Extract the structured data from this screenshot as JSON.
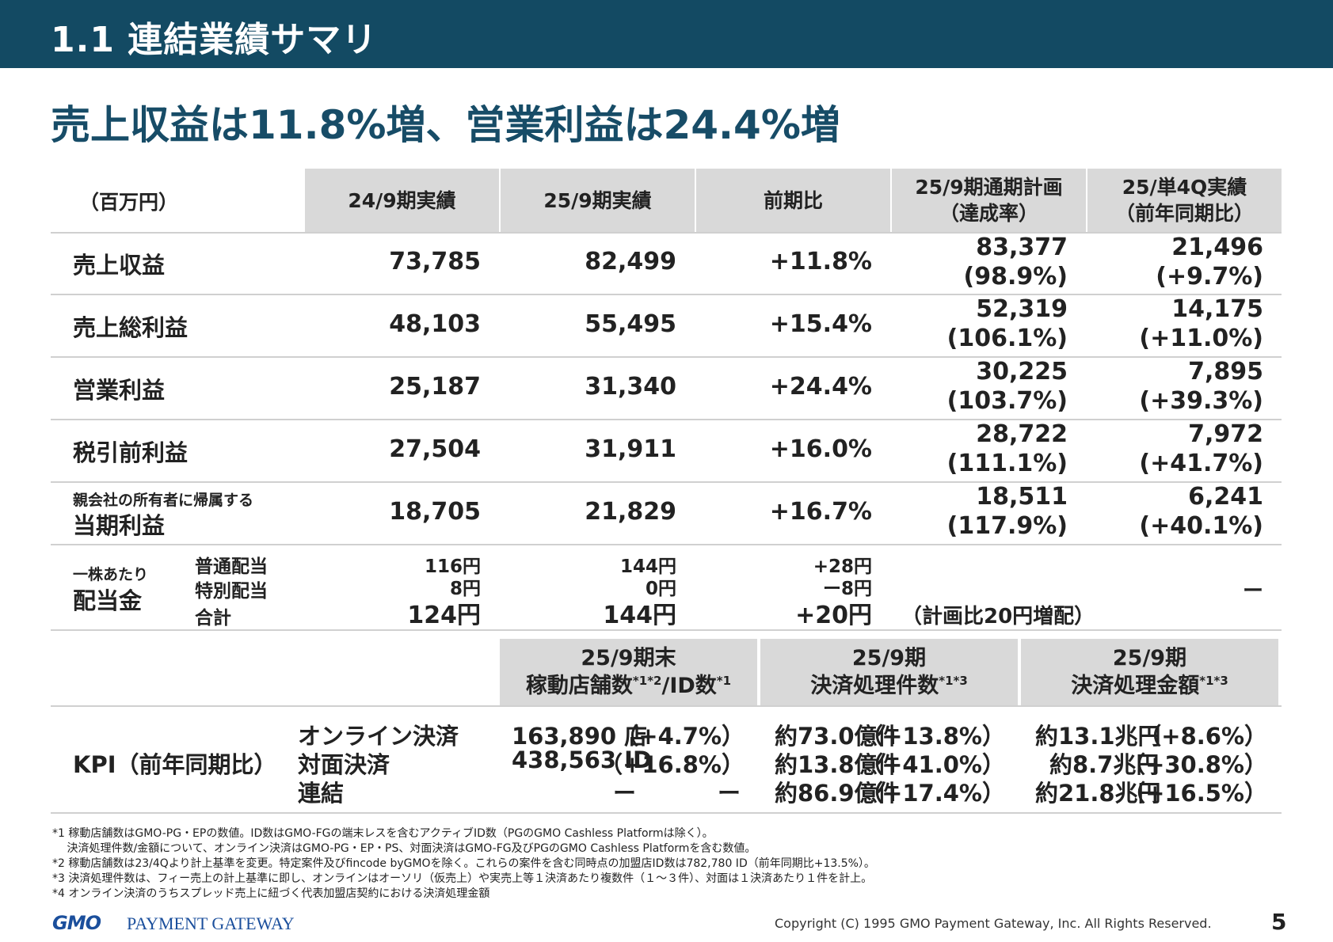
{
  "header": {
    "title": "1.1  連結業績サマリ"
  },
  "headline": "売上収益は11.8%増、営業利益は24.4%増",
  "table": {
    "unit_label": "（百万円）",
    "columns": {
      "fy24": "24/9期実績",
      "fy25": "25/9期実績",
      "yoy": "前期比",
      "plan_l1": "25/9期通期計画",
      "plan_l2": "（達成率）",
      "q4_l1": "25/単4Q実績",
      "q4_l2": "（前年同期比）"
    },
    "rows": [
      {
        "label": "売上収益",
        "fy24": "73,785",
        "fy25": "82,499",
        "yoy": "+11.8%",
        "plan": "83,377",
        "plan_rate": "(98.9%)",
        "q4": "21,496",
        "q4_rate": "(+9.7%)"
      },
      {
        "label": "売上総利益",
        "fy24": "48,103",
        "fy25": "55,495",
        "yoy": "+15.4%",
        "plan": "52,319",
        "plan_rate": "(106.1%)",
        "q4": "14,175",
        "q4_rate": "(+11.0%)"
      },
      {
        "label": "営業利益",
        "fy24": "25,187",
        "fy25": "31,340",
        "yoy": "+24.4%",
        "plan": "30,225",
        "plan_rate": "(103.7%)",
        "q4": "7,895",
        "q4_rate": "(+39.3%)"
      },
      {
        "label": "税引前利益",
        "fy24": "27,504",
        "fy25": "31,911",
        "yoy": "+16.0%",
        "plan": "28,722",
        "plan_rate": "(111.1%)",
        "q4": "7,972",
        "q4_rate": "(+41.7%)"
      },
      {
        "label_small": "親会社の所有者に帰属する",
        "label": "当期利益",
        "fy24": "18,705",
        "fy25": "21,829",
        "yoy": "+16.7%",
        "plan": "18,511",
        "plan_rate": "(117.9%)",
        "q4": "6,241",
        "q4_rate": "(+40.1%)"
      }
    ],
    "dividend": {
      "label_small": "一株あたり",
      "label": "配当金",
      "sub_labels": [
        "普通配当",
        "特別配当",
        "合計"
      ],
      "fy24": [
        "116円",
        "8円",
        "124円"
      ],
      "fy25": [
        "144円",
        "0円",
        "144円"
      ],
      "yoy": [
        "+28円",
        "ー8円",
        "+20円"
      ],
      "plan_note": "（計画比20円増配）",
      "q4": "ー"
    }
  },
  "kpi": {
    "heads": [
      {
        "l1": "25/9期末",
        "l2": "稼動店舗数",
        "s1": "*1*2",
        "mid": "/ID数",
        "s2": "*1"
      },
      {
        "l1": "25/9期",
        "l2": "決済処理件数",
        "s1": "*1*3"
      },
      {
        "l1": "25/9期",
        "l2": "決済処理金額",
        "s1": "*1*3"
      }
    ],
    "label": "KPI（前年同期比）",
    "categories": [
      "オンライン決済",
      "対面決済",
      "連結"
    ],
    "stores": [
      [
        "163,890 店",
        "（+4.7%）"
      ],
      [
        "438,563 ID",
        "（+16.8%）"
      ],
      [
        "ー",
        "ー"
      ]
    ],
    "count": [
      [
        "約73.0億件",
        "（+13.8%）"
      ],
      [
        "約13.8億件",
        "（+41.0%）"
      ],
      [
        "約86.9億件",
        "（+17.4%）"
      ]
    ],
    "amount": [
      [
        "約13.1兆円",
        "（+8.6%）"
      ],
      [
        "約8.7兆円",
        "（+30.8%）"
      ],
      [
        "約21.8兆円",
        "（+16.5%）"
      ]
    ]
  },
  "footnotes": [
    "*1 稼動店舗数はGMO-PG・EPの数値。ID数はGMO-FGの端末レスを含むアクティブID数（PGのGMO Cashless Platformは除く）。",
    "　 決済処理件数/金額について、オンライン決済はGMO-PG・EP・PS、対面決済はGMO-FG及びPGのGMO Cashless Platformを含む数値。",
    "*2 稼動店舗数は23/4Qより計上基準を変更。特定案件及びfincode byGMOを除く。これらの案件を含む同時点の加盟店ID数は782,780 ID（前年同期比+13.5%）。",
    "*3 決済処理件数は、フィー売上の計上基準に即し、オンラインはオーソリ（仮売上）や実売上等１決済あたり複数件（１～３件）、対面は１決済あたり１件を計上。",
    "*4 オンライン決済のうちスプレッド売上に紐づく代表加盟店契約における決済処理金額"
  ],
  "footer": {
    "logo_gmo": "GMO",
    "logo_rest": "PAYMENT GATEWAY",
    "copyright": "Copyright (C) 1995 GMO Payment Gateway, Inc. All Rights Reserved.",
    "page": "5"
  }
}
